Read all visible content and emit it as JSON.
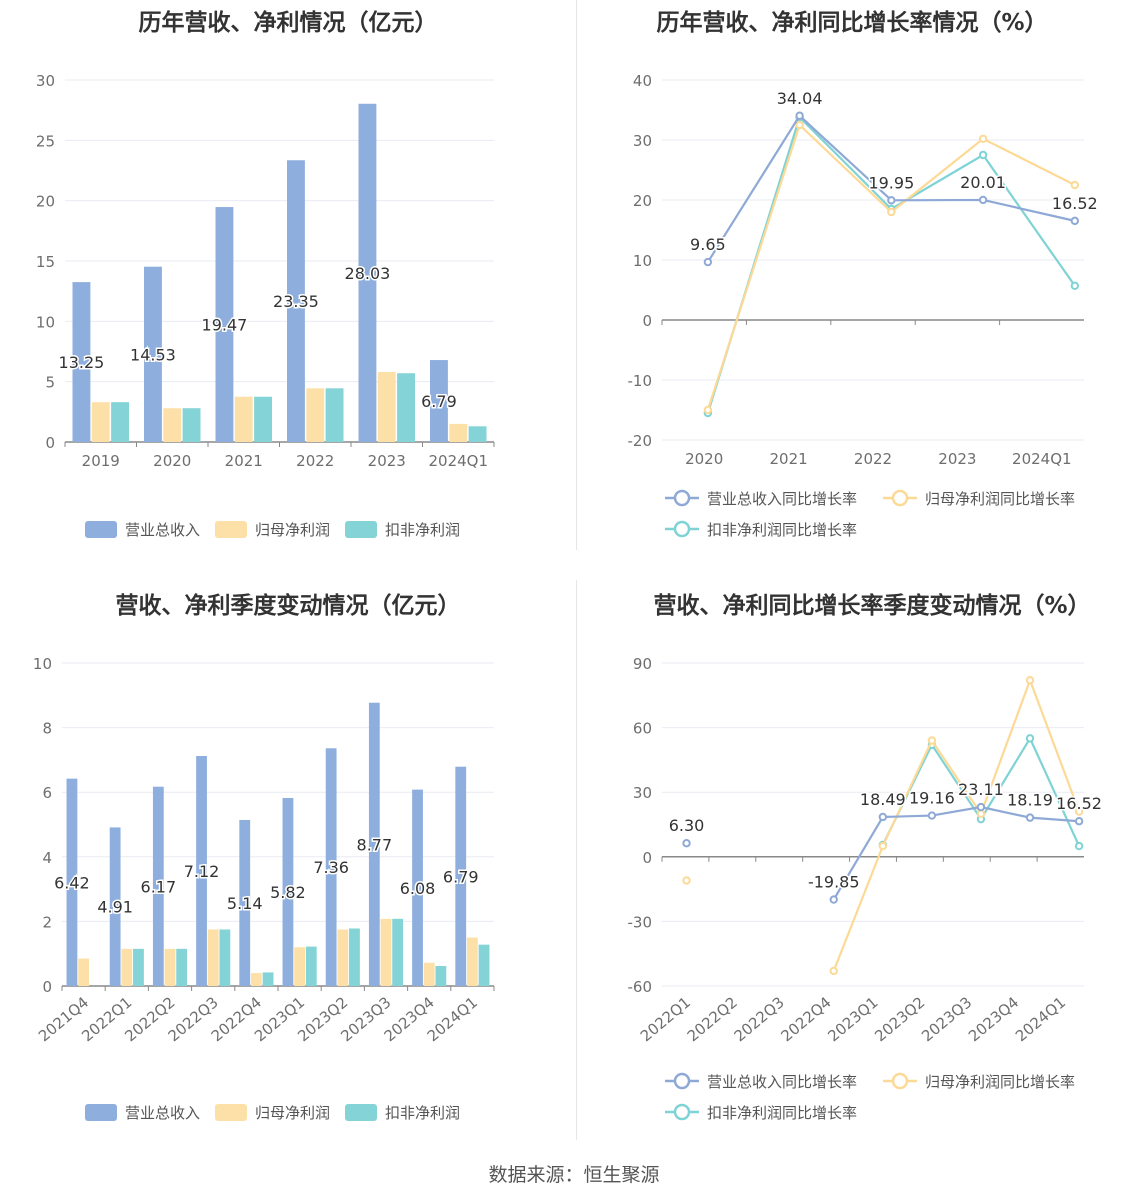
{
  "colors": {
    "revenue": "#8eaedd",
    "net_profit": "#fde0a8",
    "deducted_profit": "#84d3d6",
    "revenue_line": "#8fa9d6",
    "net_profit_line": "#fdd996",
    "deducted_profit_line": "#7fd3d5",
    "grid": "#e8ebf2",
    "axis": "#888888",
    "tick_text": "#6e6e6e"
  },
  "chart_data": [
    {
      "id": "annual-values",
      "type": "bar",
      "title": "历年营收、净利情况（亿元）",
      "categories": [
        "2019",
        "2020",
        "2021",
        "2022",
        "2023",
        "2024Q1"
      ],
      "ylim": [
        0,
        30
      ],
      "yticks": [
        0,
        5,
        10,
        15,
        20,
        25,
        30
      ],
      "series": [
        {
          "name": "营业总收入",
          "values": [
            13.25,
            14.53,
            19.47,
            23.35,
            28.03,
            6.79
          ],
          "labels": [
            "13.25",
            "14.53",
            "19.47",
            "23.35",
            "28.03",
            "6.79"
          ]
        },
        {
          "name": "归母净利润",
          "values": [
            3.3,
            2.8,
            3.75,
            4.45,
            5.8,
            1.5
          ]
        },
        {
          "name": "扣非净利润",
          "values": [
            3.3,
            2.8,
            3.75,
            4.45,
            5.7,
            1.3
          ]
        }
      ],
      "legend": "bottom-center",
      "grid": true
    },
    {
      "id": "annual-growth",
      "type": "line",
      "title": "历年营收、净利同比增长率情况（%）",
      "categories": [
        "2020",
        "2021",
        "2022",
        "2023",
        "2024Q1"
      ],
      "ylim": [
        -20,
        40
      ],
      "yticks": [
        -20,
        -10,
        0,
        10,
        20,
        30,
        40
      ],
      "series": [
        {
          "name": "营业总收入同比增长率",
          "values": [
            9.65,
            34.04,
            19.95,
            20.01,
            16.52
          ],
          "labels": [
            "9.65",
            "34.04",
            "19.95",
            "20.01",
            "16.52"
          ]
        },
        {
          "name": "归母净利润同比增长率",
          "values": [
            -15,
            32.5,
            18,
            30.2,
            22.5
          ]
        },
        {
          "name": "扣非净利润同比增长率",
          "values": [
            -15.5,
            33.8,
            18.5,
            27.5,
            5.7
          ]
        }
      ],
      "legend": "bottom-center",
      "grid": true
    },
    {
      "id": "quarterly-values",
      "type": "bar",
      "title": "营收、净利季度变动情况（亿元）",
      "categories": [
        "2021Q4",
        "2022Q1",
        "2022Q2",
        "2022Q3",
        "2022Q4",
        "2023Q1",
        "2023Q2",
        "2023Q3",
        "2023Q4",
        "2024Q1"
      ],
      "ylim": [
        0,
        10
      ],
      "yticks": [
        0,
        2,
        4,
        6,
        8,
        10
      ],
      "series": [
        {
          "name": "营业总收入",
          "values": [
            6.42,
            4.91,
            6.17,
            7.12,
            5.14,
            5.82,
            7.36,
            8.77,
            6.08,
            6.79
          ],
          "labels": [
            "6.42",
            "4.91",
            "6.17",
            "7.12",
            "5.14",
            "5.82",
            "7.36",
            "8.77",
            "6.08",
            "6.79"
          ]
        },
        {
          "name": "归母净利润",
          "values": [
            0.85,
            1.15,
            1.15,
            1.75,
            0.4,
            1.2,
            1.75,
            2.08,
            0.72,
            1.5
          ]
        },
        {
          "name": "扣非净利润",
          "values": [
            null,
            1.15,
            1.15,
            1.75,
            0.42,
            1.22,
            1.78,
            2.08,
            0.62,
            1.28
          ]
        }
      ],
      "legend": "bottom-center",
      "grid": true
    },
    {
      "id": "quarterly-growth",
      "type": "line",
      "title": "营收、净利同比增长率季度变动情况（%）",
      "categories": [
        "2022Q1",
        "2022Q2",
        "2022Q3",
        "2022Q4",
        "2023Q1",
        "2023Q2",
        "2023Q3",
        "2023Q4",
        "2024Q1"
      ],
      "ylim": [
        -60,
        90
      ],
      "yticks": [
        -60,
        -30,
        0,
        30,
        60,
        90
      ],
      "series": [
        {
          "name": "营业总收入同比增长率",
          "values": [
            6.3,
            null,
            null,
            -19.85,
            18.49,
            19.16,
            23.11,
            18.19,
            16.52
          ],
          "labels": [
            "6.30",
            null,
            null,
            "-19.85",
            "18.49",
            "19.16",
            "23.11",
            "18.19",
            "16.52"
          ]
        },
        {
          "name": "归母净利润同比增长率",
          "values": [
            -11,
            null,
            null,
            -53,
            5,
            54,
            20,
            82,
            21
          ]
        },
        {
          "name": "扣非净利润同比增长率",
          "values": [
            null,
            null,
            null,
            null,
            5.5,
            52,
            17.5,
            55,
            5
          ]
        }
      ],
      "legend": "bottom-center",
      "grid": true
    }
  ],
  "footer": {
    "source_text": "数据来源：恒生聚源"
  }
}
